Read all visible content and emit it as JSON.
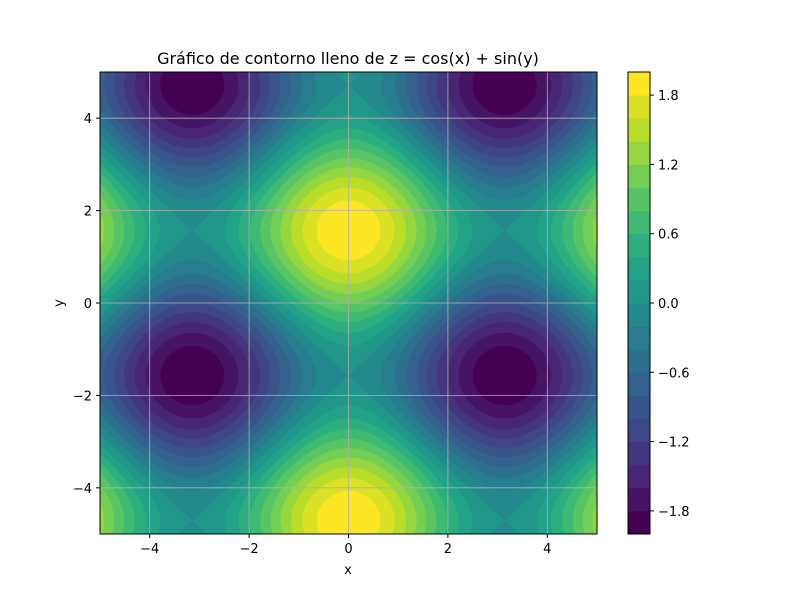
{
  "chart_data": {
    "type": "heatmap",
    "subtype": "filled-contour",
    "title": "Gráfico de contorno lleno de z = cos(x) + sin(y)",
    "xlabel": "x",
    "ylabel": "y",
    "xlim": [
      -5,
      5
    ],
    "ylim": [
      -5,
      5
    ],
    "xticks": [
      -4,
      -2,
      0,
      2,
      4
    ],
    "yticks": [
      -4,
      -2,
      0,
      2,
      4
    ],
    "xtick_labels": [
      "−4",
      "−2",
      "0",
      "2",
      "4"
    ],
    "ytick_labels": [
      "−4",
      "−2",
      "0",
      "2",
      "4"
    ],
    "function": "cos(x) + sin(y)",
    "colormap": "viridis",
    "levels": [
      -2.0,
      -1.8,
      -1.6,
      -1.4,
      -1.2,
      -1.0,
      -0.8,
      -0.6,
      -0.4,
      -0.2,
      0.0,
      0.2,
      0.4,
      0.6,
      0.8,
      1.0,
      1.2,
      1.4,
      1.6,
      1.8,
      2.0
    ],
    "colorbar": {
      "range": [
        -2.0,
        2.0
      ],
      "ticks": [
        -1.8,
        -1.2,
        -0.6,
        0.0,
        0.6,
        1.2,
        1.8
      ],
      "tick_labels": [
        "−1.8",
        "−1.2",
        "−0.6",
        "0.0",
        "0.6",
        "1.2",
        "1.8"
      ]
    },
    "grid": true
  }
}
